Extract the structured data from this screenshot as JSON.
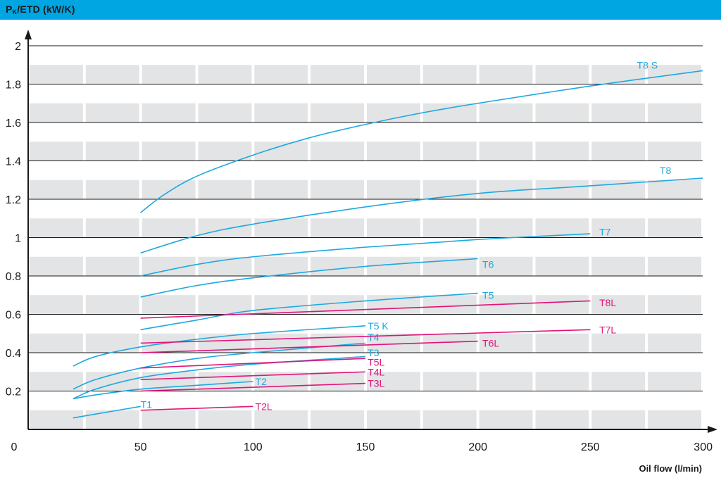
{
  "header": {
    "y_title_main": "P",
    "y_title_sub": "K",
    "y_title_rest": "/ETD (kW/K)"
  },
  "chart_data": {
    "type": "line",
    "title": "",
    "ylabel": "PK/ETD (kW/K)",
    "xlabel": "Oil flow (l/min)",
    "xlim": [
      0,
      300
    ],
    "ylim": [
      0,
      2
    ],
    "xticks": [
      "0",
      "50",
      "100",
      "150",
      "200",
      "250",
      "300"
    ],
    "yticks": [
      "0.2",
      "0.4",
      "0.6",
      "0.8",
      "1",
      "1.2",
      "1.4",
      "1.6",
      "1.8",
      "2"
    ],
    "grid": "banded",
    "colors": {
      "T": "#1ea8e0",
      "L": "#e0157a",
      "band": "#e3e4e5",
      "bar": "#00a6e2"
    },
    "series": [
      {
        "name": "T8 S",
        "color": "#1ea8e0",
        "x": [
          50,
          60,
          75,
          100,
          125,
          150,
          175,
          200,
          250,
          300
        ],
        "y": [
          1.13,
          1.22,
          1.32,
          1.43,
          1.52,
          1.59,
          1.65,
          1.7,
          1.79,
          1.87
        ]
      },
      {
        "name": "T8",
        "color": "#1ea8e0",
        "x": [
          50,
          75,
          100,
          150,
          200,
          250,
          300
        ],
        "y": [
          0.92,
          1.01,
          1.07,
          1.16,
          1.23,
          1.27,
          1.31
        ]
      },
      {
        "name": "T7",
        "color": "#1ea8e0",
        "x": [
          50,
          75,
          100,
          150,
          200,
          250
        ],
        "y": [
          0.8,
          0.86,
          0.9,
          0.95,
          0.99,
          1.02
        ]
      },
      {
        "name": "T6",
        "color": "#1ea8e0",
        "x": [
          50,
          75,
          100,
          150,
          200
        ],
        "y": [
          0.69,
          0.75,
          0.79,
          0.85,
          0.89
        ]
      },
      {
        "name": "T5",
        "color": "#1ea8e0",
        "x": [
          50,
          75,
          100,
          150,
          200
        ],
        "y": [
          0.52,
          0.57,
          0.62,
          0.67,
          0.71
        ]
      },
      {
        "name": "T5 K",
        "color": "#1ea8e0",
        "x": [
          20,
          30,
          50,
          75,
          100,
          150
        ],
        "y": [
          0.33,
          0.38,
          0.43,
          0.47,
          0.5,
          0.54
        ]
      },
      {
        "name": "T4",
        "color": "#1ea8e0",
        "x": [
          20,
          30,
          50,
          75,
          100,
          150
        ],
        "y": [
          0.21,
          0.26,
          0.32,
          0.37,
          0.4,
          0.45
        ]
      },
      {
        "name": "T3",
        "color": "#1ea8e0",
        "x": [
          20,
          30,
          50,
          75,
          100,
          150
        ],
        "y": [
          0.16,
          0.21,
          0.27,
          0.31,
          0.34,
          0.38
        ]
      },
      {
        "name": "T2",
        "color": "#1ea8e0",
        "x": [
          20,
          30,
          50,
          75,
          100
        ],
        "y": [
          0.16,
          0.18,
          0.21,
          0.23,
          0.25
        ]
      },
      {
        "name": "T1",
        "color": "#1ea8e0",
        "x": [
          20,
          30,
          40,
          50
        ],
        "y": [
          0.06,
          0.08,
          0.1,
          0.12
        ]
      },
      {
        "name": "T8L",
        "color": "#e0157a",
        "x": [
          50,
          250
        ],
        "y": [
          0.58,
          0.67
        ]
      },
      {
        "name": "T7L",
        "color": "#e0157a",
        "x": [
          50,
          250
        ],
        "y": [
          0.45,
          0.52
        ]
      },
      {
        "name": "T6L",
        "color": "#e0157a",
        "x": [
          50,
          200
        ],
        "y": [
          0.4,
          0.46
        ]
      },
      {
        "name": "T5L",
        "color": "#e0157a",
        "x": [
          50,
          150
        ],
        "y": [
          0.32,
          0.37
        ]
      },
      {
        "name": "T4L",
        "color": "#e0157a",
        "x": [
          50,
          150
        ],
        "y": [
          0.26,
          0.3
        ]
      },
      {
        "name": "T3L",
        "color": "#e0157a",
        "x": [
          50,
          150
        ],
        "y": [
          0.2,
          0.24
        ]
      },
      {
        "name": "T2L",
        "color": "#e0157a",
        "x": [
          50,
          100
        ],
        "y": [
          0.1,
          0.12
        ]
      }
    ]
  }
}
